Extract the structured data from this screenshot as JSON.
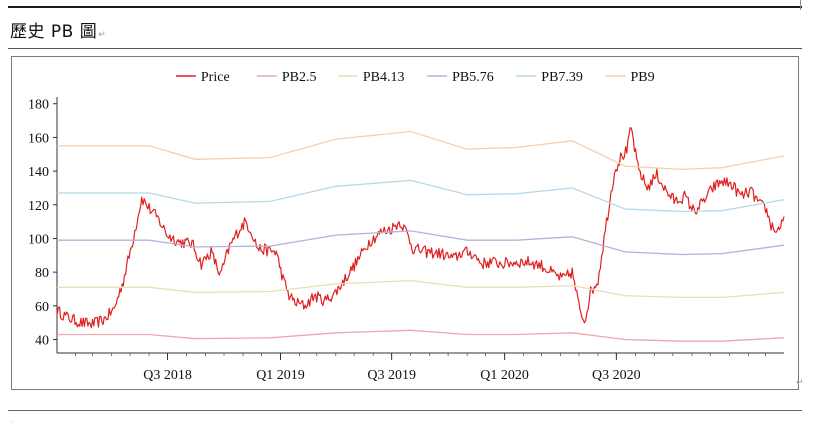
{
  "document": {
    "heading": "歷史 PB 圖",
    "para_mark": "↵"
  },
  "chart_data": {
    "type": "line",
    "title": "",
    "xlabel": "",
    "ylabel": "",
    "ylim": [
      32,
      184
    ],
    "yticks": [
      40,
      60,
      80,
      100,
      120,
      140,
      160,
      180
    ],
    "xlim": [
      "2018-01-02",
      "2021-03-31"
    ],
    "xticks": [
      {
        "label": "Q3 2018",
        "date": "2018-07-01"
      },
      {
        "label": "Q1 2019",
        "date": "2019-01-01"
      },
      {
        "label": "Q3 2019",
        "date": "2019-07-01"
      },
      {
        "label": "Q1 2020",
        "date": "2020-01-01"
      },
      {
        "label": "Q3 2020",
        "date": "2020-07-01"
      }
    ],
    "legend_position": "top-center",
    "grid": false,
    "series": [
      {
        "name": "Price",
        "color": "#e02020",
        "style": "noisy",
        "points": [
          [
            "2018-01-02",
            57
          ],
          [
            "2018-01-20",
            53
          ],
          [
            "2018-02-10",
            50
          ],
          [
            "2018-03-01",
            49
          ],
          [
            "2018-03-20",
            52
          ],
          [
            "2018-04-05",
            58
          ],
          [
            "2018-04-20",
            75
          ],
          [
            "2018-05-05",
            98
          ],
          [
            "2018-05-20",
            124
          ],
          [
            "2018-06-01",
            118
          ],
          [
            "2018-06-15",
            112
          ],
          [
            "2018-07-01",
            102
          ],
          [
            "2018-07-20",
            98
          ],
          [
            "2018-08-10",
            97
          ],
          [
            "2018-08-25",
            85
          ],
          [
            "2018-09-10",
            92
          ],
          [
            "2018-09-25",
            78
          ],
          [
            "2018-10-10",
            95
          ],
          [
            "2018-10-25",
            105
          ],
          [
            "2018-11-05",
            110
          ],
          [
            "2018-11-15",
            104
          ],
          [
            "2018-11-25",
            94
          ],
          [
            "2018-12-10",
            93
          ],
          [
            "2018-12-25",
            92
          ],
          [
            "2019-01-05",
            76
          ],
          [
            "2019-01-15",
            66
          ],
          [
            "2019-01-25",
            62
          ],
          [
            "2019-02-10",
            60
          ],
          [
            "2019-02-25",
            66
          ],
          [
            "2019-03-15",
            63
          ],
          [
            "2019-04-01",
            68
          ],
          [
            "2019-04-20",
            78
          ],
          [
            "2019-05-05",
            86
          ],
          [
            "2019-05-25",
            98
          ],
          [
            "2019-06-15",
            104
          ],
          [
            "2019-07-01",
            106
          ],
          [
            "2019-07-15",
            110
          ],
          [
            "2019-07-25",
            104
          ],
          [
            "2019-08-05",
            94
          ],
          [
            "2019-08-25",
            92
          ],
          [
            "2019-09-20",
            91
          ],
          [
            "2019-10-10",
            88
          ],
          [
            "2019-10-25",
            92
          ],
          [
            "2019-11-10",
            91
          ],
          [
            "2019-11-25",
            85
          ],
          [
            "2019-12-10",
            86
          ],
          [
            "2019-12-30",
            85
          ],
          [
            "2020-01-20",
            86
          ],
          [
            "2020-02-10",
            86
          ],
          [
            "2020-03-01",
            84
          ],
          [
            "2020-03-20",
            79
          ],
          [
            "2020-04-05",
            76
          ],
          [
            "2020-04-20",
            80
          ],
          [
            "2020-05-01",
            60
          ],
          [
            "2020-05-10",
            51
          ],
          [
            "2020-05-20",
            68
          ],
          [
            "2020-06-01",
            75
          ],
          [
            "2020-06-15",
            110
          ],
          [
            "2020-06-28",
            140
          ],
          [
            "2020-07-08",
            148
          ],
          [
            "2020-07-18",
            152
          ],
          [
            "2020-07-25",
            166
          ],
          [
            "2020-08-05",
            142
          ],
          [
            "2020-08-20",
            130
          ],
          [
            "2020-09-05",
            138
          ],
          [
            "2020-09-20",
            128
          ],
          [
            "2020-10-05",
            122
          ],
          [
            "2020-10-20",
            125
          ],
          [
            "2020-11-05",
            116
          ],
          [
            "2020-11-20",
            122
          ],
          [
            "2020-12-05",
            130
          ],
          [
            "2020-12-20",
            134
          ],
          [
            "2021-01-05",
            132
          ],
          [
            "2021-01-20",
            125
          ],
          [
            "2021-02-05",
            128
          ],
          [
            "2021-02-20",
            120
          ],
          [
            "2021-03-01",
            118
          ],
          [
            "2021-03-10",
            108
          ],
          [
            "2021-03-20",
            104
          ],
          [
            "2021-03-31",
            113
          ]
        ]
      },
      {
        "name": "PB2.5",
        "color": "#f0a6b2",
        "style": "smooth",
        "points": [
          [
            "2018-01-02",
            43
          ],
          [
            "2018-06-01",
            43
          ],
          [
            "2018-08-15",
            40.5
          ],
          [
            "2018-12-15",
            41
          ],
          [
            "2019-04-01",
            44
          ],
          [
            "2019-08-01",
            45.5
          ],
          [
            "2019-11-01",
            43
          ],
          [
            "2020-01-20",
            43
          ],
          [
            "2020-04-20",
            44
          ],
          [
            "2020-07-15",
            40
          ],
          [
            "2020-10-15",
            39
          ],
          [
            "2020-12-20",
            39
          ],
          [
            "2021-03-31",
            41
          ]
        ]
      },
      {
        "name": "PB4.13",
        "color": "#e6e1b4",
        "style": "smooth",
        "points": [
          [
            "2018-01-02",
            71
          ],
          [
            "2018-06-01",
            71
          ],
          [
            "2018-08-15",
            68
          ],
          [
            "2018-12-15",
            68.5
          ],
          [
            "2019-04-01",
            73
          ],
          [
            "2019-08-01",
            75
          ],
          [
            "2019-11-01",
            71
          ],
          [
            "2020-01-20",
            71
          ],
          [
            "2020-04-20",
            72
          ],
          [
            "2020-07-15",
            66
          ],
          [
            "2020-10-15",
            65
          ],
          [
            "2020-12-20",
            65
          ],
          [
            "2021-03-31",
            68
          ]
        ]
      },
      {
        "name": "PB5.76",
        "color": "#b0b4d8",
        "style": "smooth",
        "points": [
          [
            "2018-01-02",
            99
          ],
          [
            "2018-06-01",
            99
          ],
          [
            "2018-08-15",
            95
          ],
          [
            "2018-12-15",
            95.5
          ],
          [
            "2019-04-01",
            102
          ],
          [
            "2019-08-01",
            104.5
          ],
          [
            "2019-11-01",
            99
          ],
          [
            "2020-01-20",
            99
          ],
          [
            "2020-04-20",
            101
          ],
          [
            "2020-07-15",
            92
          ],
          [
            "2020-10-15",
            90.5
          ],
          [
            "2020-12-20",
            91
          ],
          [
            "2021-03-31",
            96
          ]
        ]
      },
      {
        "name": "PB7.39",
        "color": "#b7d8e8",
        "style": "smooth",
        "points": [
          [
            "2018-01-02",
            127
          ],
          [
            "2018-06-01",
            127
          ],
          [
            "2018-08-15",
            121
          ],
          [
            "2018-12-15",
            122
          ],
          [
            "2019-04-01",
            131
          ],
          [
            "2019-08-01",
            134.5
          ],
          [
            "2019-11-01",
            126
          ],
          [
            "2020-01-20",
            126.5
          ],
          [
            "2020-04-20",
            130
          ],
          [
            "2020-07-15",
            117.5
          ],
          [
            "2020-10-15",
            116
          ],
          [
            "2020-12-20",
            116.5
          ],
          [
            "2021-03-31",
            123
          ]
        ]
      },
      {
        "name": "PB9",
        "color": "#f6cfae",
        "style": "smooth",
        "points": [
          [
            "2018-01-02",
            155
          ],
          [
            "2018-06-01",
            155
          ],
          [
            "2018-08-15",
            147
          ],
          [
            "2018-12-15",
            148
          ],
          [
            "2019-04-01",
            159
          ],
          [
            "2019-08-01",
            163.5
          ],
          [
            "2019-11-01",
            153
          ],
          [
            "2020-01-20",
            154
          ],
          [
            "2020-04-20",
            158
          ],
          [
            "2020-07-15",
            143
          ],
          [
            "2020-10-15",
            141
          ],
          [
            "2020-12-20",
            142
          ],
          [
            "2021-03-31",
            149
          ]
        ]
      }
    ]
  }
}
